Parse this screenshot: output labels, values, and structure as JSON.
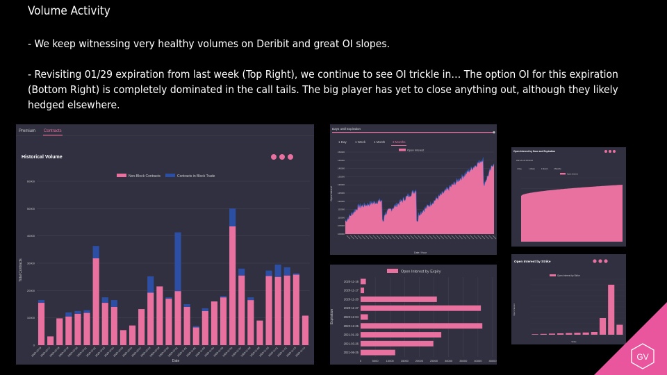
{
  "slide": {
    "title": "Volume Activity",
    "bullet1": "- We keep witnessing very healthy volumes on Deribit and great OI slopes.",
    "bullet2": "- Revisiting 01/29 expiration from last week (Top Right), we continue to see OI trickle in… The option OI for this expiration (Bottom Right) is completely dominated in the call tails. The big player has yet to close anything out, although they likely hedged elsewhere.",
    "logo_text": "GV"
  },
  "colors": {
    "pink": "#e8719f",
    "blue": "#2d4fa3",
    "panel": "#303040",
    "grid": "#454556",
    "accent": "#e9569d"
  },
  "left_panel": {
    "tabs": [
      "Premium",
      "Contracts"
    ],
    "active_tab": "Contracts",
    "title": "Historical Volume",
    "icons": [
      "download-icon",
      "expand-icon",
      "settings-icon"
    ]
  },
  "top_middle_panel": {
    "header": "Days until Expiration",
    "tabs": [
      "1 Day",
      "1 Week",
      "1 Month",
      "3 Months"
    ],
    "active_tab": "3 Months"
  },
  "top_right_panel": {
    "title": "Open Interest by Hour and Expiration",
    "subtitle": "2021-01-29 00:00:00",
    "tabs": [
      "1 Day",
      "1 Week",
      "1 Month",
      "3 Months"
    ]
  },
  "bottom_right_panel": {
    "title": "Open Interest by Strike"
  },
  "chart_data": [
    {
      "id": "historical-volume",
      "type": "bar",
      "stacked": true,
      "title": "Historical Volume",
      "xlabel": "Date",
      "ylabel": "Total Contracts",
      "ylim": [
        0,
        60000
      ],
      "yticks": [
        0,
        10000,
        20000,
        30000,
        40000,
        50000,
        60000
      ],
      "legend": "top-center",
      "categories": [
        "2020-10-10",
        "2020-10-17",
        "2020-10-18",
        "2020-10-19",
        "2020-10-20",
        "2020-10-21",
        "2020-10-22",
        "2020-10-23",
        "2020-10-24",
        "2020-10-25",
        "2020-10-26",
        "2020-10-27",
        "2020-10-28",
        "2020-10-29",
        "2020-10-30",
        "2020-10-31",
        "2020-11-01",
        "2020-11-02",
        "2020-11-03",
        "2020-11-04",
        "2020-11-05",
        "2020-11-06",
        "2020-11-07",
        "2020-11-08",
        "2020-11-09",
        "2020-11-10",
        "2020-11-11",
        "2020-11-12",
        "2020-11-13",
        "2020-11-14"
      ],
      "series": [
        {
          "name": "Non-Block Contracts",
          "color": "#e8719f",
          "values": [
            15500,
            3200,
            9800,
            10500,
            11500,
            11800,
            31800,
            15500,
            14000,
            5500,
            7200,
            13200,
            19200,
            21500,
            17000,
            19800,
            14000,
            6500,
            12500,
            16000,
            17500,
            43500,
            25500,
            16500,
            9000,
            25300,
            25000,
            25500,
            25800,
            10800
          ]
        },
        {
          "name": "Contracts in Block Trade",
          "color": "#2d4fa3",
          "values": [
            1000,
            0,
            0,
            1500,
            1000,
            1000,
            4500,
            2000,
            2500,
            0,
            0,
            0,
            6000,
            0,
            500,
            21500,
            1000,
            500,
            1000,
            0,
            500,
            6500,
            2500,
            1000,
            0,
            2000,
            4500,
            3000,
            500,
            0
          ]
        }
      ]
    },
    {
      "id": "days-until-expiration",
      "type": "area",
      "legend": "top-center",
      "series_name": "Open Interest",
      "xlabel": "Date / Hour",
      "ylabel": "Open Interest",
      "yticks": [
        100000,
        105000,
        110000,
        115000,
        120000,
        125000,
        130000,
        135000,
        140000,
        145000,
        150000
      ],
      "ylim": [
        100000,
        150000
      ]
    },
    {
      "id": "open-interest-by-expiry",
      "type": "bar",
      "orientation": "horizontal",
      "series_name": "Open Interest by Expiry",
      "ylabel": "Expiration",
      "categories": [
        "2020-11-16",
        "2020-11-17",
        "2020-11-20",
        "2020-11-27",
        "2020-12-04",
        "2020-12-25",
        "2021-01-29",
        "2021-03-26",
        "2021-06-25"
      ],
      "values": [
        1800,
        1200,
        26000,
        41000,
        2500,
        41500,
        27500,
        24800,
        11800
      ],
      "xlim": [
        0,
        45000
      ],
      "xticks": [
        0,
        5000,
        10000,
        15000,
        20000,
        25000,
        30000,
        35000,
        40000,
        45000
      ]
    },
    {
      "id": "open-interest-hour-expiration",
      "type": "area",
      "series_name": "Open Interest"
    },
    {
      "id": "open-interest-by-strike",
      "type": "bar",
      "series_name": "Open Interest by Strike",
      "xlabel": "Strike",
      "ylabel": "Open Interest",
      "values": [
        100,
        150,
        200,
        250,
        300,
        350,
        400,
        500,
        3000,
        9000,
        1800
      ]
    }
  ]
}
